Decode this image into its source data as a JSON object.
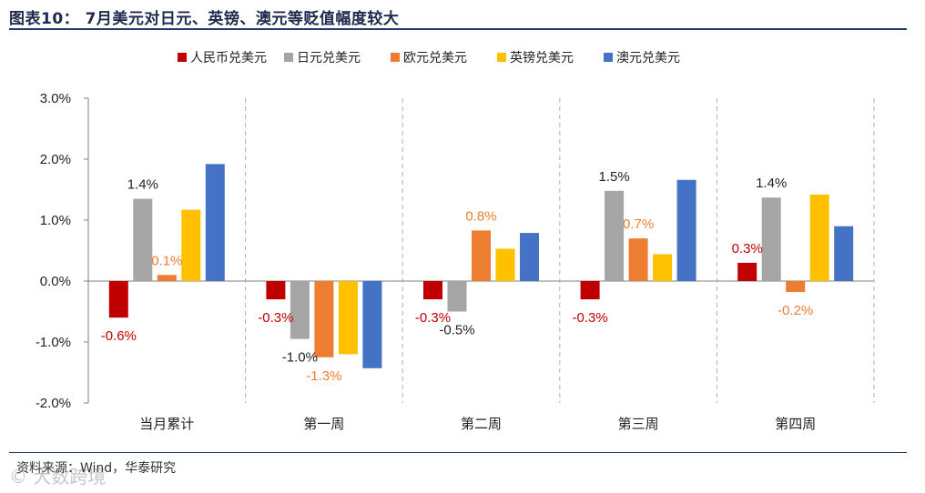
{
  "figure": {
    "title": "图表10： 7月美元对日元、英镑、澳元等贬值幅度较大",
    "source": "资料来源：Wind，华泰研究",
    "watermark": "© 大数跨境"
  },
  "chart_data": {
    "type": "bar",
    "categories": [
      "当月累计",
      "第一周",
      "第二周",
      "第三周",
      "第四周"
    ],
    "series": [
      {
        "name": "人民币兑美元",
        "color": "#c00000",
        "label_color": "#c00000",
        "values": [
          -0.6,
          -0.3,
          -0.3,
          -0.3,
          0.3
        ],
        "labels": [
          "-0.6%",
          "-0.3%",
          "-0.3%",
          "-0.3%",
          "0.3%"
        ]
      },
      {
        "name": "日元兑美元",
        "color": "#a5a5a5",
        "label_color": "#222222",
        "values": [
          1.35,
          -0.95,
          -0.5,
          1.48,
          1.37
        ],
        "labels": [
          "1.4%",
          "-1.0%",
          "-0.5%",
          "1.5%",
          "1.4%"
        ]
      },
      {
        "name": "欧元兑美元",
        "color": "#ed7d31",
        "label_color": "#ed7d31",
        "values": [
          0.1,
          -1.25,
          0.83,
          0.7,
          -0.18
        ],
        "labels": [
          "0.1%",
          "-1.3%",
          "0.8%",
          "0.7%",
          "-0.2%"
        ]
      },
      {
        "name": "英镑兑美元",
        "color": "#ffc000",
        "label_color": "#ffc000",
        "values": [
          1.17,
          -1.2,
          0.53,
          0.44,
          1.42
        ],
        "labels": [
          null,
          null,
          null,
          null,
          null
        ]
      },
      {
        "name": "澳元兑美元",
        "color": "#4472c4",
        "label_color": "#4472c4",
        "values": [
          1.92,
          -1.43,
          0.79,
          1.66,
          0.9
        ],
        "labels": [
          null,
          null,
          null,
          null,
          null
        ]
      }
    ],
    "ylim": [
      -2.0,
      3.0
    ],
    "yticks": [
      -2.0,
      -1.0,
      0.0,
      1.0,
      2.0,
      3.0
    ],
    "ytick_labels": [
      "-2.0%",
      "-1.0%",
      "0.0%",
      "1.0%",
      "2.0%",
      "3.0%"
    ],
    "legend_position": "top",
    "grid": false,
    "category_separators": "dashed"
  }
}
